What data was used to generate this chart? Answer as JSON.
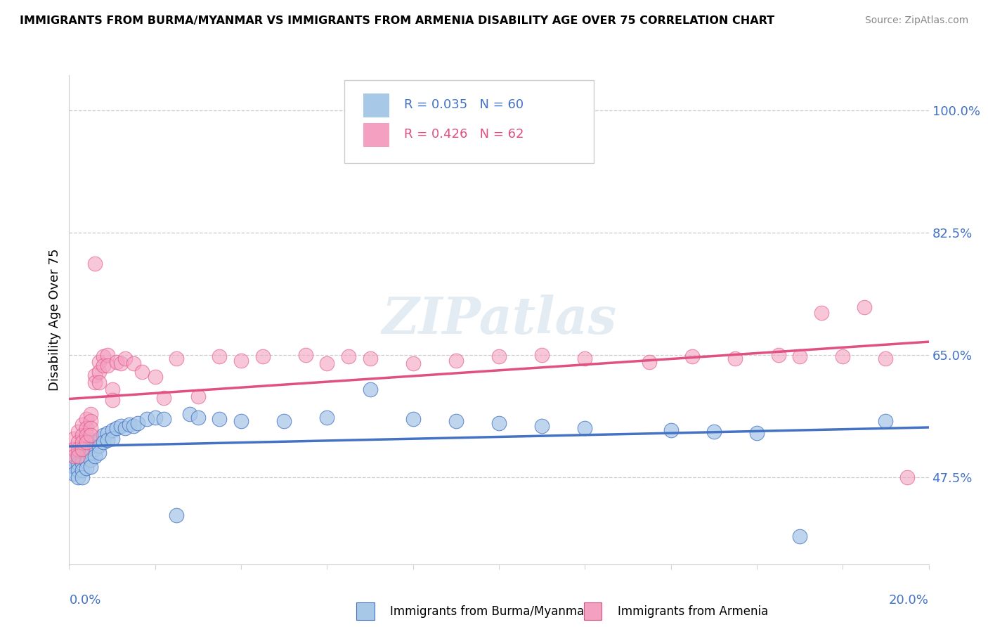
{
  "title": "IMMIGRANTS FROM BURMA/MYANMAR VS IMMIGRANTS FROM ARMENIA DISABILITY AGE OVER 75 CORRELATION CHART",
  "source": "Source: ZipAtlas.com",
  "ylabel": "Disability Age Over 75",
  "right_ytick_vals": [
    0.475,
    0.65,
    0.825,
    1.0
  ],
  "right_ytick_labels": [
    "47.5%",
    "65.0%",
    "82.5%",
    "100.0%"
  ],
  "xlim": [
    0.0,
    0.2
  ],
  "ylim": [
    0.35,
    1.05
  ],
  "legend_R1": "R = 0.035",
  "legend_N1": "N = 60",
  "legend_R2": "R = 0.426",
  "legend_N2": "N = 62",
  "color_burma": "#a8c8e8",
  "color_armenia": "#f4a0c0",
  "color_burma_line": "#4472c4",
  "color_armenia_line": "#e05080",
  "legend_label1": "Immigrants from Burma/Myanmar",
  "legend_label2": "Immigrants from Armenia",
  "watermark": "ZIPatlas",
  "burma_x": [
    0.001,
    0.001,
    0.001,
    0.002,
    0.002,
    0.002,
    0.002,
    0.002,
    0.003,
    0.003,
    0.003,
    0.003,
    0.003,
    0.004,
    0.004,
    0.004,
    0.004,
    0.005,
    0.005,
    0.005,
    0.005,
    0.006,
    0.006,
    0.006,
    0.007,
    0.007,
    0.007,
    0.008,
    0.008,
    0.009,
    0.009,
    0.01,
    0.01,
    0.011,
    0.012,
    0.013,
    0.014,
    0.015,
    0.016,
    0.018,
    0.02,
    0.022,
    0.025,
    0.028,
    0.03,
    0.035,
    0.04,
    0.05,
    0.06,
    0.07,
    0.08,
    0.09,
    0.1,
    0.11,
    0.12,
    0.14,
    0.15,
    0.16,
    0.17,
    0.19
  ],
  "burma_y": [
    0.5,
    0.49,
    0.48,
    0.51,
    0.505,
    0.495,
    0.485,
    0.475,
    0.51,
    0.5,
    0.495,
    0.485,
    0.475,
    0.515,
    0.505,
    0.498,
    0.488,
    0.52,
    0.51,
    0.5,
    0.49,
    0.525,
    0.515,
    0.505,
    0.53,
    0.52,
    0.51,
    0.535,
    0.525,
    0.538,
    0.528,
    0.542,
    0.53,
    0.545,
    0.548,
    0.545,
    0.55,
    0.548,
    0.552,
    0.558,
    0.56,
    0.558,
    0.42,
    0.565,
    0.56,
    0.558,
    0.555,
    0.555,
    0.56,
    0.6,
    0.558,
    0.555,
    0.552,
    0.548,
    0.545,
    0.542,
    0.54,
    0.538,
    0.39,
    0.555
  ],
  "armenia_x": [
    0.001,
    0.001,
    0.001,
    0.002,
    0.002,
    0.002,
    0.002,
    0.003,
    0.003,
    0.003,
    0.003,
    0.004,
    0.004,
    0.004,
    0.004,
    0.005,
    0.005,
    0.005,
    0.005,
    0.006,
    0.006,
    0.006,
    0.007,
    0.007,
    0.007,
    0.008,
    0.008,
    0.009,
    0.009,
    0.01,
    0.01,
    0.011,
    0.012,
    0.013,
    0.015,
    0.017,
    0.02,
    0.022,
    0.025,
    0.03,
    0.035,
    0.04,
    0.045,
    0.055,
    0.06,
    0.065,
    0.07,
    0.08,
    0.09,
    0.1,
    0.11,
    0.12,
    0.135,
    0.145,
    0.155,
    0.165,
    0.17,
    0.175,
    0.18,
    0.185,
    0.19,
    0.195
  ],
  "armenia_y": [
    0.53,
    0.515,
    0.505,
    0.54,
    0.525,
    0.515,
    0.505,
    0.55,
    0.535,
    0.525,
    0.515,
    0.558,
    0.545,
    0.535,
    0.525,
    0.565,
    0.555,
    0.545,
    0.535,
    0.78,
    0.62,
    0.61,
    0.64,
    0.625,
    0.61,
    0.648,
    0.635,
    0.65,
    0.635,
    0.6,
    0.585,
    0.64,
    0.638,
    0.645,
    0.638,
    0.625,
    0.618,
    0.588,
    0.645,
    0.59,
    0.648,
    0.642,
    0.648,
    0.65,
    0.638,
    0.648,
    0.645,
    0.638,
    0.642,
    0.648,
    0.65,
    0.645,
    0.64,
    0.648,
    0.645,
    0.65,
    0.648,
    0.71,
    0.648,
    0.718,
    0.645,
    0.475
  ]
}
